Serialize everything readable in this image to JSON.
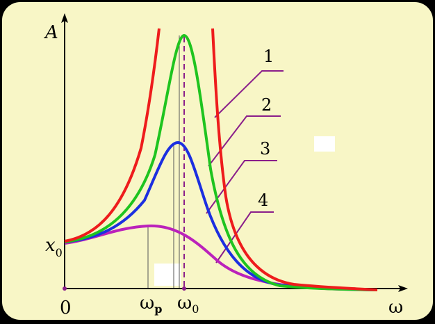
{
  "labels": {
    "y_axis": "A",
    "x_axis": "ω",
    "origin": "0",
    "x0_base": "x",
    "x0_sub": "0",
    "omega_p_base": "ω",
    "omega_p_sub": "p",
    "omega0_base": "ω",
    "omega0_sub": "0"
  },
  "curve_numbers": [
    "1",
    "2",
    "3",
    "4"
  ],
  "colors": {
    "curve_1": "#ee1c1c",
    "curve_2": "#1fc41f",
    "curve_3": "#1c2fe0",
    "curve_4": "#bb22bb",
    "leader": "#8a1e8a",
    "axis": "#000000",
    "background": "#f8f6c6"
  }
}
